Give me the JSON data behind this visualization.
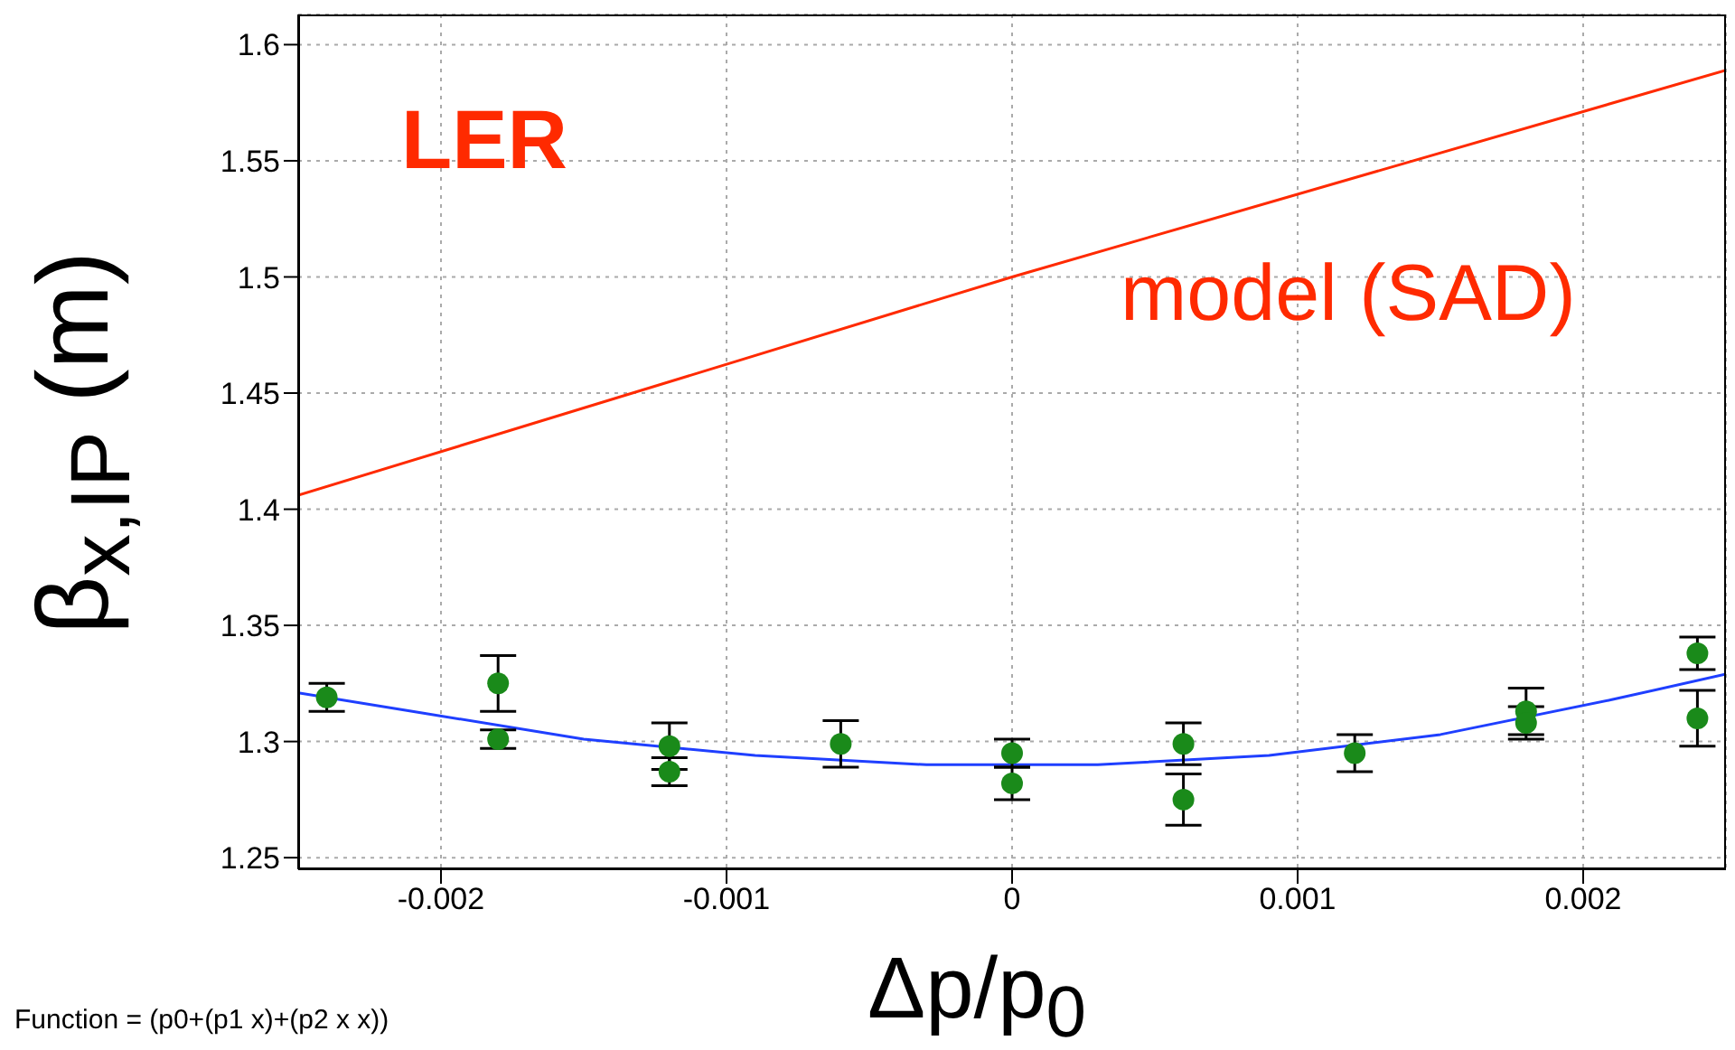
{
  "chart_data": {
    "type": "scatter",
    "xlabel": "Δp/p$_{0}$",
    "ylabel": "β$_{x,IP}$ (m)",
    "annotations": [
      "LER",
      "Function = (p0+(p1 x)+(p2 x x))"
    ],
    "xlim": [
      -0.0025,
      0.0025
    ],
    "ylim": [
      1.245,
      1.613
    ],
    "xticks": [
      -0.002,
      -0.001,
      0,
      0.001,
      0.002
    ],
    "yticks": [
      1.25,
      1.3,
      1.35,
      1.4,
      1.45,
      1.5,
      1.55,
      1.6
    ],
    "grid": true,
    "series": [
      {
        "type": "line",
        "name": "model (SAD)",
        "color": "#ff2a00",
        "x": [
          -0.0025,
          0,
          0.0025
        ],
        "values": [
          1.406,
          1.5,
          1.589
        ]
      },
      {
        "type": "line",
        "color": "#1f3fff",
        "x": [
          -0.0025,
          -0.0021,
          -0.0015,
          -0.0009,
          -0.0003,
          0.0003,
          0.0009,
          0.0015,
          0.0021,
          0.0025
        ],
        "values": [
          1.321,
          1.313,
          1.301,
          1.294,
          1.29,
          1.29,
          1.294,
          1.303,
          1.318,
          1.329
        ]
      },
      {
        "marker": "circle",
        "color": "#1a8a1a",
        "x": [
          -0.0024,
          -0.0018,
          -0.0018,
          -0.0012,
          -0.0012,
          -0.0006,
          0,
          0,
          0.0006,
          0.0006,
          0.0012,
          0.0018,
          0.0018,
          0.0024,
          0.0024
        ],
        "values": [
          1.319,
          1.325,
          1.301,
          1.298,
          1.287,
          1.299,
          1.295,
          1.282,
          1.299,
          1.275,
          1.295,
          1.313,
          1.308,
          1.338,
          1.31
        ],
        "errors": [
          0.006,
          0.012,
          0.004,
          0.01,
          0.006,
          0.01,
          0.006,
          0.007,
          0.009,
          0.011,
          0.008,
          0.01,
          0.007,
          0.007,
          0.012
        ]
      }
    ]
  }
}
